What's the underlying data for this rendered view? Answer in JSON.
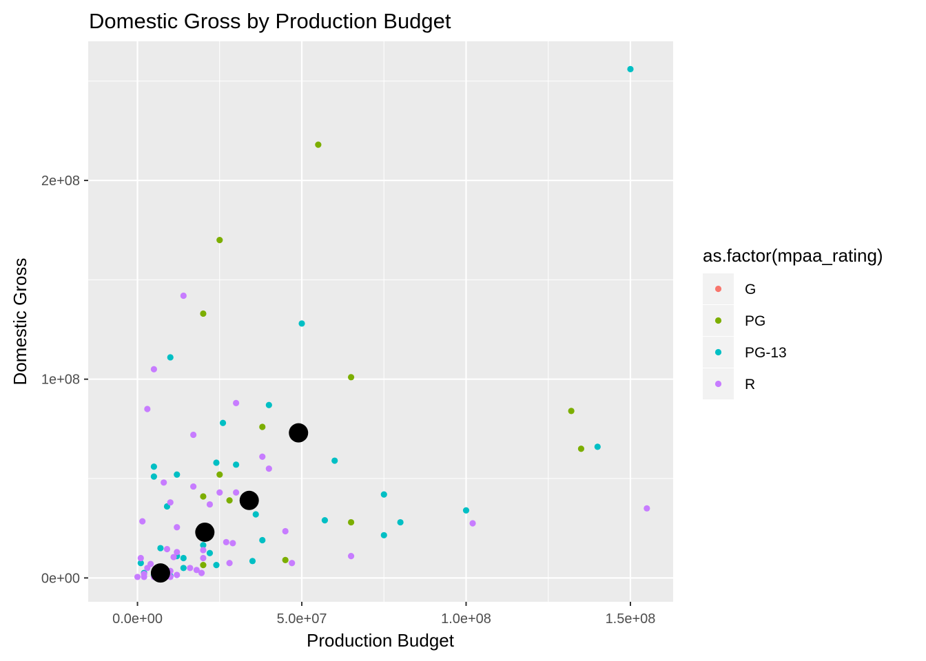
{
  "chart_data": {
    "type": "scatter",
    "title": "Domestic Gross by Production Budget",
    "xlabel": "Production Budget",
    "ylabel": "Domestic Gross",
    "xlim": [
      -15000000,
      163000000
    ],
    "ylim": [
      -12000000,
      270000000
    ],
    "x_ticks": [
      0,
      50000000,
      100000000,
      150000000
    ],
    "x_tick_labels": [
      "0.0e+00",
      "5.0e+07",
      "1.0e+08",
      "1.5e+08"
    ],
    "y_ticks": [
      0,
      100000000,
      200000000
    ],
    "y_tick_labels": [
      "0e+00",
      "1e+08",
      "2e+08"
    ],
    "grid": true,
    "legend": {
      "title": "as.factor(mpaa_rating)",
      "position": "right",
      "entries": [
        {
          "label": "G",
          "color": "#F8766D"
        },
        {
          "label": "PG",
          "color": "#7CAE00"
        },
        {
          "label": "PG-13",
          "color": "#00BFC4"
        },
        {
          "label": "R",
          "color": "#C77CFF"
        }
      ]
    },
    "series": [
      {
        "name": "PG",
        "color": "#7CAE00",
        "points": [
          [
            55000000,
            218000000
          ],
          [
            25000000,
            170000000
          ],
          [
            20000000,
            133000000
          ],
          [
            65000000,
            101000000
          ],
          [
            38000000,
            76000000
          ],
          [
            132000000,
            84000000
          ],
          [
            135000000,
            65000000
          ],
          [
            25000000,
            52000000
          ],
          [
            20000000,
            41000000
          ],
          [
            28000000,
            39000000
          ],
          [
            65000000,
            28000000
          ],
          [
            45000000,
            9000000
          ],
          [
            20000000,
            6500000
          ]
        ]
      },
      {
        "name": "PG-13",
        "color": "#00BFC4",
        "points": [
          [
            150000000,
            256000000
          ],
          [
            50000000,
            128000000
          ],
          [
            10000000,
            111000000
          ],
          [
            40000000,
            87000000
          ],
          [
            26000000,
            78000000
          ],
          [
            140000000,
            66000000
          ],
          [
            60000000,
            59000000
          ],
          [
            5000000,
            56000000
          ],
          [
            24000000,
            58000000
          ],
          [
            30000000,
            57000000
          ],
          [
            5000000,
            51000000
          ],
          [
            12000000,
            52000000
          ],
          [
            75000000,
            42000000
          ],
          [
            9000000,
            36000000
          ],
          [
            36000000,
            32000000
          ],
          [
            100000000,
            34000000
          ],
          [
            57000000,
            29000000
          ],
          [
            80000000,
            28000000
          ],
          [
            75000000,
            21500000
          ],
          [
            38000000,
            19000000
          ],
          [
            7000000,
            15000000
          ],
          [
            20000000,
            16500000
          ],
          [
            22000000,
            12500000
          ],
          [
            12000000,
            11000000
          ],
          [
            14000000,
            10000000
          ],
          [
            35000000,
            8500000
          ],
          [
            24000000,
            6500000
          ],
          [
            1000000,
            7500000
          ],
          [
            14000000,
            5000000
          ],
          [
            2000000,
            2500000
          ],
          [
            5000000,
            1500000
          ],
          [
            10000000,
            1000000
          ]
        ]
      },
      {
        "name": "R",
        "color": "#C77CFF",
        "points": [
          [
            14000000,
            142000000
          ],
          [
            5000000,
            105000000
          ],
          [
            3000000,
            85000000
          ],
          [
            30000000,
            88000000
          ],
          [
            17000000,
            72000000
          ],
          [
            38000000,
            61000000
          ],
          [
            40000000,
            55000000
          ],
          [
            8000000,
            48000000
          ],
          [
            17000000,
            46000000
          ],
          [
            25000000,
            43000000
          ],
          [
            30000000,
            43000000
          ],
          [
            10000000,
            38000000
          ],
          [
            22000000,
            37000000
          ],
          [
            155000000,
            35000000
          ],
          [
            1500000,
            28500000
          ],
          [
            12000000,
            25500000
          ],
          [
            45000000,
            23500000
          ],
          [
            102000000,
            27500000
          ],
          [
            27000000,
            18000000
          ],
          [
            29000000,
            17500000
          ],
          [
            9000000,
            14500000
          ],
          [
            20000000,
            14000000
          ],
          [
            12000000,
            13000000
          ],
          [
            65000000,
            11000000
          ],
          [
            11000000,
            10500000
          ],
          [
            20000000,
            10000000
          ],
          [
            1000000,
            10000000
          ],
          [
            28000000,
            7500000
          ],
          [
            47000000,
            7500000
          ],
          [
            4000000,
            7000000
          ],
          [
            3000000,
            5000000
          ],
          [
            16000000,
            5000000
          ],
          [
            18000000,
            4000000
          ],
          [
            10000000,
            3500000
          ],
          [
            19500000,
            2500000
          ],
          [
            2000000,
            2000000
          ],
          [
            12000000,
            1500000
          ],
          [
            0,
            500000
          ],
          [
            2000000,
            500000
          ],
          [
            5000000,
            500000
          ],
          [
            10000000,
            500000
          ]
        ]
      },
      {
        "color": "#000000",
        "size": "large",
        "points": [
          [
            49000000,
            73000000
          ],
          [
            34000000,
            39000000
          ],
          [
            20500000,
            23000000
          ],
          [
            7000000,
            2500000
          ]
        ]
      }
    ]
  }
}
